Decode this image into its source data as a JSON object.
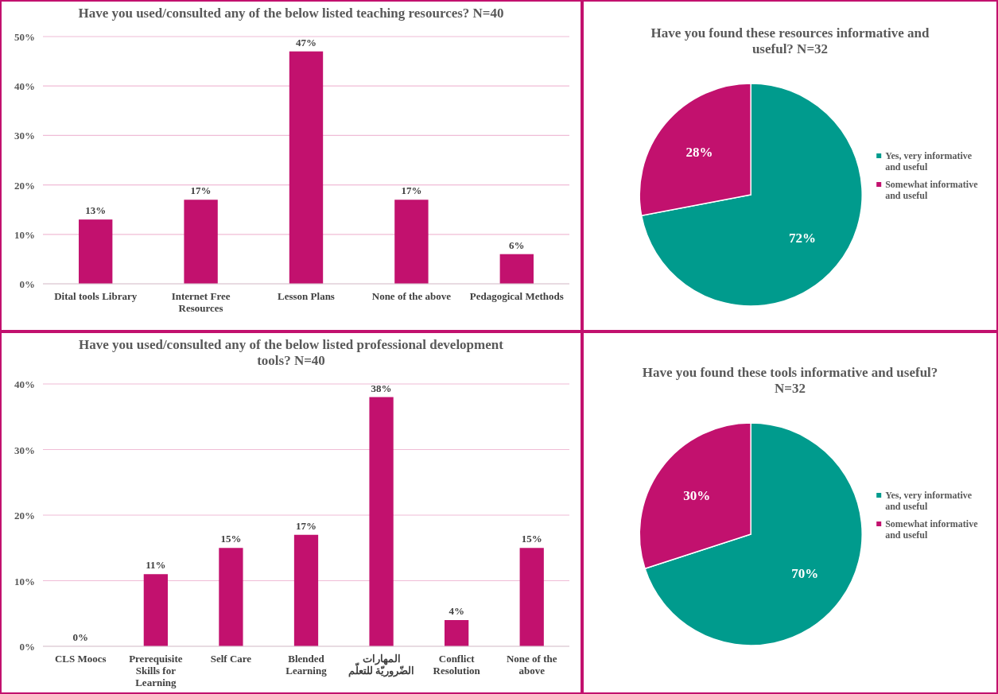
{
  "chart_data": [
    {
      "type": "bar",
      "title": "Have you used/consulted any of the below listed teaching resources? N=40",
      "categories": [
        "Dital tools Library",
        "Internet Free Resources",
        "Lesson Plans",
        "None of the above",
        "Pedagogical Methods"
      ],
      "values": [
        13,
        17,
        47,
        17,
        6
      ],
      "value_labels": [
        "13%",
        "17%",
        "47%",
        "17%",
        "6%"
      ],
      "color": "#c2116e",
      "ylim": [
        0,
        50
      ],
      "yticks": [
        {
          "value": 0,
          "label": "0%"
        },
        {
          "value": 10,
          "label": "10%"
        },
        {
          "value": 20,
          "label": "20%"
        },
        {
          "value": 30,
          "label": "30%"
        },
        {
          "value": 40,
          "label": "40%"
        },
        {
          "value": 50,
          "label": "50%"
        }
      ],
      "grid": "y"
    },
    {
      "type": "pie",
      "title": "Have you found these resources informative and useful? N=32",
      "categories": [
        "Yes, very informative and useful",
        "Somewhat informative and useful"
      ],
      "values": [
        72,
        28
      ],
      "value_labels": [
        "72%",
        "28%"
      ],
      "colors": [
        "#009b8d",
        "#c2116e"
      ],
      "legend": "right"
    },
    {
      "type": "bar",
      "title": "Have you used/consulted any of the below listed professional development tools? N=40",
      "categories": [
        "CLS Moocs",
        "Prerequisite Skills for Learning",
        "Self Care",
        "Blended Learning",
        "المهارات الضّروريّة للتعلّم",
        "Conflict Resolution",
        "None of the above"
      ],
      "values": [
        0,
        11,
        15,
        17,
        38,
        4,
        15
      ],
      "value_labels": [
        "0%",
        "11%",
        "15%",
        "17%",
        "38%",
        "4%",
        "15%"
      ],
      "color": "#c2116e",
      "ylim": [
        0,
        40
      ],
      "yticks": [
        {
          "value": 0,
          "label": "0%"
        },
        {
          "value": 10,
          "label": "10%"
        },
        {
          "value": 20,
          "label": "20%"
        },
        {
          "value": 30,
          "label": "30%"
        },
        {
          "value": 40,
          "label": "40%"
        }
      ],
      "grid": "y"
    },
    {
      "type": "pie",
      "title": "Have you found these tools informative and useful? N=32",
      "categories": [
        "Yes, very informative and useful",
        "Somewhat informative and useful"
      ],
      "values": [
        70,
        30
      ],
      "value_labels": [
        "70%",
        "30%"
      ],
      "colors": [
        "#009b8d",
        "#c2116e"
      ],
      "legend": "right"
    }
  ]
}
